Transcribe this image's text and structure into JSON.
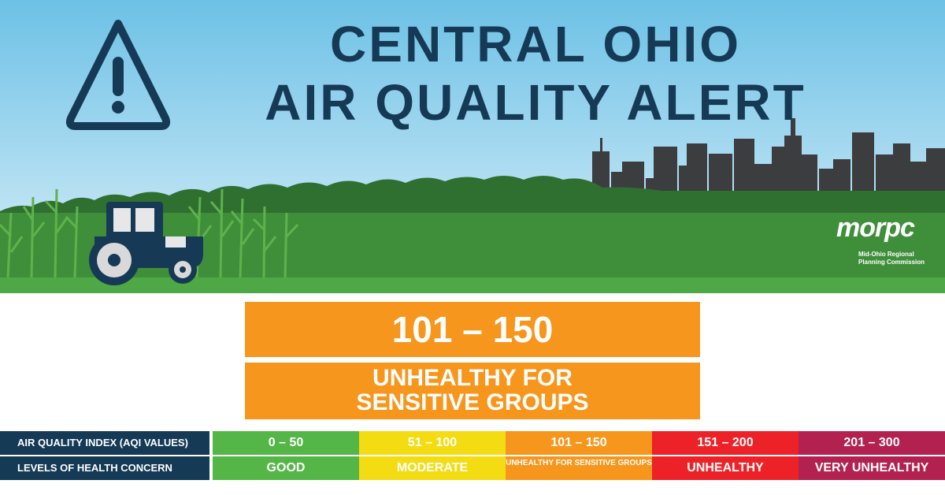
{
  "title": {
    "line1": "CENTRAL OHIO",
    "line2": "AIR QUALITY ALERT"
  },
  "icons": {
    "warning": "warning-triangle-icon",
    "tractor": "tractor-illustration",
    "skyline": "city-skyline-illustration"
  },
  "logo": {
    "wordmark": "morpc",
    "line1": "Mid-Ohio Regional",
    "line2": "Planning Commission"
  },
  "current": {
    "range": "101 – 150",
    "category_line1": "UNHEALTHY FOR",
    "category_line2": "SENSITIVE GROUPS",
    "color": "#f7961d"
  },
  "scale": {
    "aqi_label": "AIR QUALITY INDEX (AQI VALUES)",
    "health_label": "LEVELS OF HEALTH CONCERN",
    "levels": [
      {
        "range": "0 – 50",
        "concern": "GOOD",
        "color": "#55b648"
      },
      {
        "range": "51 – 100",
        "concern": "MODERATE",
        "color": "#f3dc12"
      },
      {
        "range": "101 – 150",
        "concern": "UNHEALTHY FOR SENSITIVE GROUPS",
        "color": "#f7961d"
      },
      {
        "range": "151 – 200",
        "concern": "UNHEALTHY",
        "color": "#ed2229"
      },
      {
        "range": "201 – 300",
        "concern": "VERY UNHEALTHY",
        "color": "#b22150"
      }
    ]
  },
  "colors": {
    "navy": "#163a56",
    "sky_top": "#6cc1e6",
    "grass": "#3f8f3a"
  }
}
